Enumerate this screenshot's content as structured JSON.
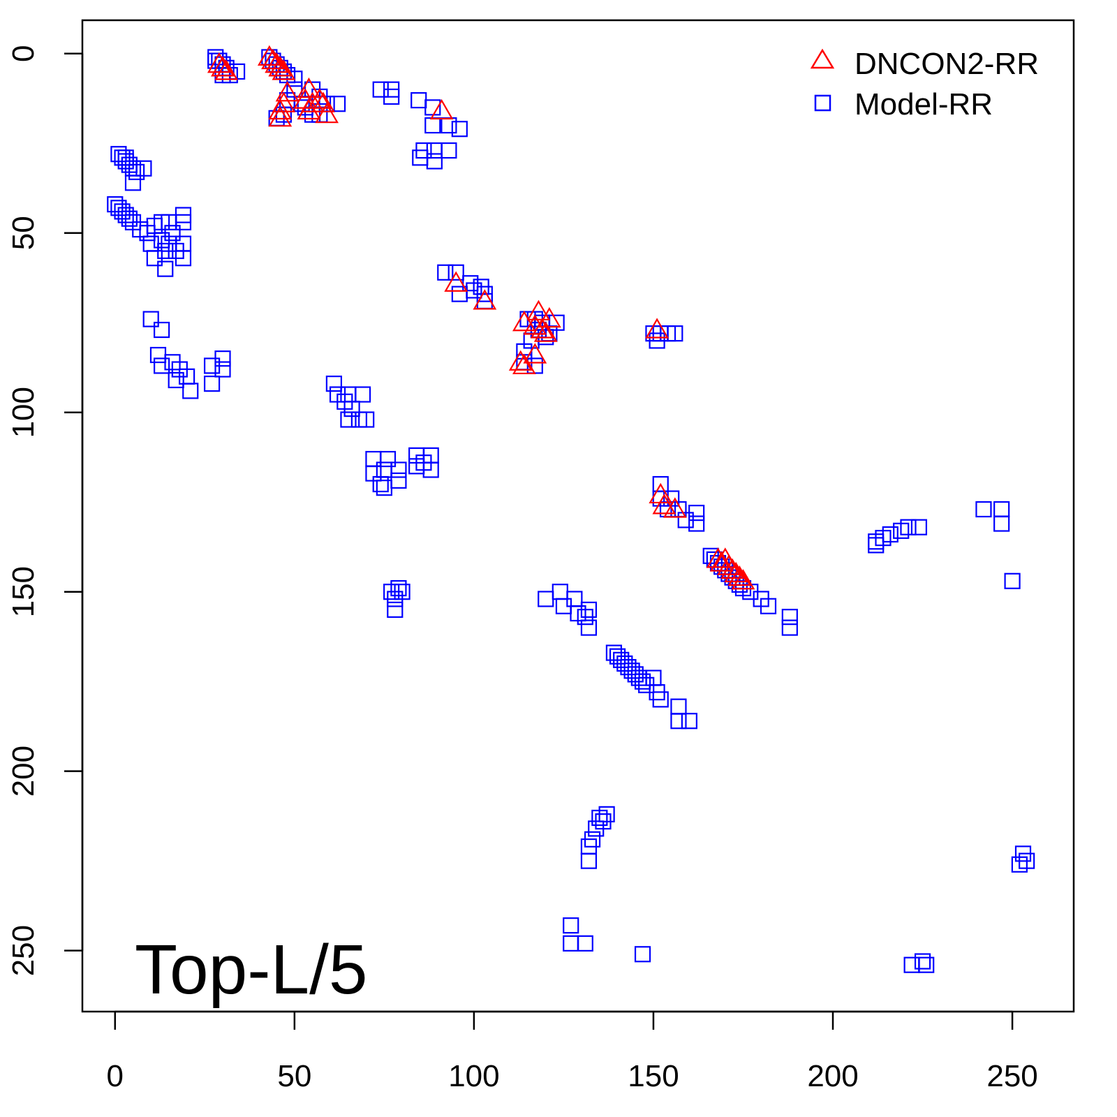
{
  "chart_data": {
    "type": "scatter",
    "title": "",
    "xlabel": "",
    "ylabel": "",
    "xlim": [
      -9.1,
      267.1
    ],
    "ylim": [
      -9.3,
      267
    ],
    "y_reversed": true,
    "grid": false,
    "x_ticks": [
      "0",
      "50",
      "100",
      "150",
      "200",
      "250"
    ],
    "x_tick_values": [
      0,
      50,
      100,
      150,
      200,
      250
    ],
    "y_ticks": [
      "0",
      "50",
      "100",
      "150",
      "200",
      "250"
    ],
    "y_tick_values": [
      0,
      50,
      100,
      150,
      200,
      250
    ],
    "legend_placement": "top-right",
    "annotation": "Top-L/5",
    "series": [
      {
        "name": "DNCON2-RR",
        "marker": "triangle",
        "color": "#ff0000",
        "points": [
          [
            29,
            3
          ],
          [
            30,
            4
          ],
          [
            31,
            5
          ],
          [
            43,
            1
          ],
          [
            44,
            2
          ],
          [
            45,
            3
          ],
          [
            46,
            4
          ],
          [
            47,
            5
          ],
          [
            48,
            11
          ],
          [
            47,
            14
          ],
          [
            46,
            16
          ],
          [
            46,
            18
          ],
          [
            54,
            10
          ],
          [
            53,
            13
          ],
          [
            55,
            14
          ],
          [
            57,
            13
          ],
          [
            58,
            14
          ],
          [
            59,
            17
          ],
          [
            54,
            16
          ],
          [
            91,
            16
          ],
          [
            95,
            64
          ],
          [
            103,
            69
          ],
          [
            114,
            75
          ],
          [
            113,
            86
          ],
          [
            114,
            87
          ],
          [
            117,
            84
          ],
          [
            117,
            76
          ],
          [
            118,
            72
          ],
          [
            119,
            77
          ],
          [
            120,
            78
          ],
          [
            121,
            74
          ],
          [
            151,
            77
          ],
          [
            152,
            123
          ],
          [
            153,
            126
          ],
          [
            156,
            127
          ],
          [
            168,
            141
          ],
          [
            169,
            142
          ],
          [
            170,
            141
          ],
          [
            171,
            143
          ],
          [
            172,
            144
          ],
          [
            173,
            145
          ],
          [
            174,
            146
          ],
          [
            175,
            147
          ]
        ]
      },
      {
        "name": "Model-RR",
        "marker": "square",
        "color": "#0000ff",
        "points": [
          [
            28,
            1
          ],
          [
            29,
            2
          ],
          [
            30,
            3
          ],
          [
            31,
            4
          ],
          [
            32,
            6
          ],
          [
            30,
            6
          ],
          [
            34,
            5
          ],
          [
            28,
            2
          ],
          [
            43,
            1
          ],
          [
            44,
            2
          ],
          [
            45,
            3
          ],
          [
            46,
            4
          ],
          [
            47,
            5
          ],
          [
            48,
            6
          ],
          [
            50,
            7
          ],
          [
            45,
            18
          ],
          [
            47,
            17
          ],
          [
            48,
            13
          ],
          [
            50,
            10
          ],
          [
            55,
            10
          ],
          [
            57,
            12
          ],
          [
            59,
            14
          ],
          [
            62,
            14
          ],
          [
            53,
            15
          ],
          [
            55,
            17
          ],
          [
            57,
            17
          ],
          [
            52,
            14
          ],
          [
            74,
            10
          ],
          [
            77,
            12
          ],
          [
            77,
            10
          ],
          [
            84.6,
            13
          ],
          [
            88.5,
            15
          ],
          [
            88.5,
            20
          ],
          [
            93,
            20
          ],
          [
            96,
            21
          ],
          [
            85,
            29
          ],
          [
            89,
            27
          ],
          [
            93,
            27
          ],
          [
            86,
            27
          ],
          [
            89,
            30
          ],
          [
            1,
            28
          ],
          [
            2,
            29
          ],
          [
            3,
            30
          ],
          [
            4,
            31
          ],
          [
            5,
            32
          ],
          [
            6,
            33
          ],
          [
            8,
            32
          ],
          [
            5,
            36
          ],
          [
            3,
            29
          ],
          [
            0,
            42
          ],
          [
            1,
            43
          ],
          [
            2,
            44
          ],
          [
            3,
            45
          ],
          [
            4,
            46
          ],
          [
            5,
            47
          ],
          [
            7,
            49
          ],
          [
            9,
            50
          ],
          [
            11,
            48
          ],
          [
            13,
            47
          ],
          [
            15,
            47
          ],
          [
            19,
            45
          ],
          [
            19,
            47
          ],
          [
            10,
            53
          ],
          [
            11,
            57
          ],
          [
            14,
            55
          ],
          [
            14,
            60
          ],
          [
            15,
            53
          ],
          [
            17,
            55
          ],
          [
            19,
            53
          ],
          [
            19,
            57
          ],
          [
            13,
            52
          ],
          [
            16,
            50
          ],
          [
            10,
            74
          ],
          [
            13,
            77
          ],
          [
            12,
            84
          ],
          [
            13,
            87
          ],
          [
            16,
            86
          ],
          [
            18,
            88
          ],
          [
            17,
            91
          ],
          [
            20,
            90
          ],
          [
            21,
            94
          ],
          [
            27,
            87
          ],
          [
            27,
            92
          ],
          [
            30,
            85
          ],
          [
            30,
            88
          ],
          [
            61,
            92
          ],
          [
            62,
            95
          ],
          [
            64,
            97
          ],
          [
            66,
            99
          ],
          [
            65,
            102
          ],
          [
            68,
            102
          ],
          [
            70,
            102
          ],
          [
            69,
            95
          ],
          [
            65,
            95
          ],
          [
            72,
            113
          ],
          [
            72,
            117
          ],
          [
            74,
            120
          ],
          [
            75,
            116
          ],
          [
            76,
            113
          ],
          [
            79,
            116
          ],
          [
            79,
            119
          ],
          [
            84,
            112
          ],
          [
            84,
            115
          ],
          [
            88,
            112
          ],
          [
            88,
            116
          ],
          [
            86,
            114
          ],
          [
            75,
            121
          ],
          [
            77,
            150
          ],
          [
            78,
            152
          ],
          [
            78,
            155
          ],
          [
            79,
            149
          ],
          [
            80,
            150
          ],
          [
            92,
            61
          ],
          [
            95,
            61
          ],
          [
            96,
            67
          ],
          [
            99,
            64
          ],
          [
            100,
            66
          ],
          [
            102,
            65
          ],
          [
            103,
            67
          ],
          [
            103,
            69
          ],
          [
            115,
            74
          ],
          [
            117,
            74
          ],
          [
            118,
            77
          ],
          [
            119,
            75
          ],
          [
            120,
            79
          ],
          [
            121,
            78
          ],
          [
            123,
            75
          ],
          [
            114,
            83
          ],
          [
            114,
            86
          ],
          [
            117,
            87
          ],
          [
            116,
            80
          ],
          [
            118,
            77
          ],
          [
            150,
            78
          ],
          [
            152,
            78
          ],
          [
            154,
            78
          ],
          [
            156,
            78
          ],
          [
            151,
            80
          ],
          [
            152,
            120
          ],
          [
            152,
            124
          ],
          [
            155,
            124
          ],
          [
            157,
            127
          ],
          [
            159,
            130
          ],
          [
            162,
            128
          ],
          [
            162,
            131
          ],
          [
            154,
            127
          ],
          [
            166,
            140
          ],
          [
            167,
            141
          ],
          [
            168,
            142
          ],
          [
            169,
            143
          ],
          [
            170,
            144
          ],
          [
            171,
            145
          ],
          [
            172,
            146
          ],
          [
            173,
            147
          ],
          [
            174,
            148
          ],
          [
            175,
            149
          ],
          [
            177,
            150
          ],
          [
            180,
            152
          ],
          [
            182,
            154
          ],
          [
            188,
            157
          ],
          [
            188,
            160
          ],
          [
            120,
            152
          ],
          [
            124,
            150
          ],
          [
            125,
            154
          ],
          [
            128,
            152
          ],
          [
            129,
            156
          ],
          [
            131,
            157
          ],
          [
            132,
            155
          ],
          [
            132,
            160
          ],
          [
            139,
            167
          ],
          [
            140,
            168
          ],
          [
            141,
            169
          ],
          [
            142,
            170
          ],
          [
            143,
            171
          ],
          [
            144,
            172
          ],
          [
            145,
            173
          ],
          [
            146,
            174
          ],
          [
            147,
            175
          ],
          [
            148,
            176
          ],
          [
            150,
            174
          ],
          [
            151,
            178
          ],
          [
            152,
            180
          ],
          [
            157,
            182
          ],
          [
            157,
            186
          ],
          [
            160,
            186
          ],
          [
            212,
            136
          ],
          [
            214,
            135
          ],
          [
            216,
            134
          ],
          [
            219,
            133
          ],
          [
            221,
            132
          ],
          [
            224,
            132
          ],
          [
            212,
            137
          ],
          [
            242,
            127
          ],
          [
            247,
            127
          ],
          [
            247,
            131
          ],
          [
            250,
            147
          ],
          [
            137,
            212
          ],
          [
            135,
            213
          ],
          [
            134,
            216
          ],
          [
            133,
            219
          ],
          [
            132,
            221
          ],
          [
            132,
            225
          ],
          [
            136,
            214
          ],
          [
            127,
            243
          ],
          [
            127,
            248
          ],
          [
            131,
            248
          ],
          [
            147,
            251
          ],
          [
            222,
            254
          ],
          [
            225,
            253
          ],
          [
            226,
            254
          ],
          [
            253,
            223
          ],
          [
            254,
            225
          ],
          [
            252,
            226
          ]
        ]
      }
    ]
  }
}
